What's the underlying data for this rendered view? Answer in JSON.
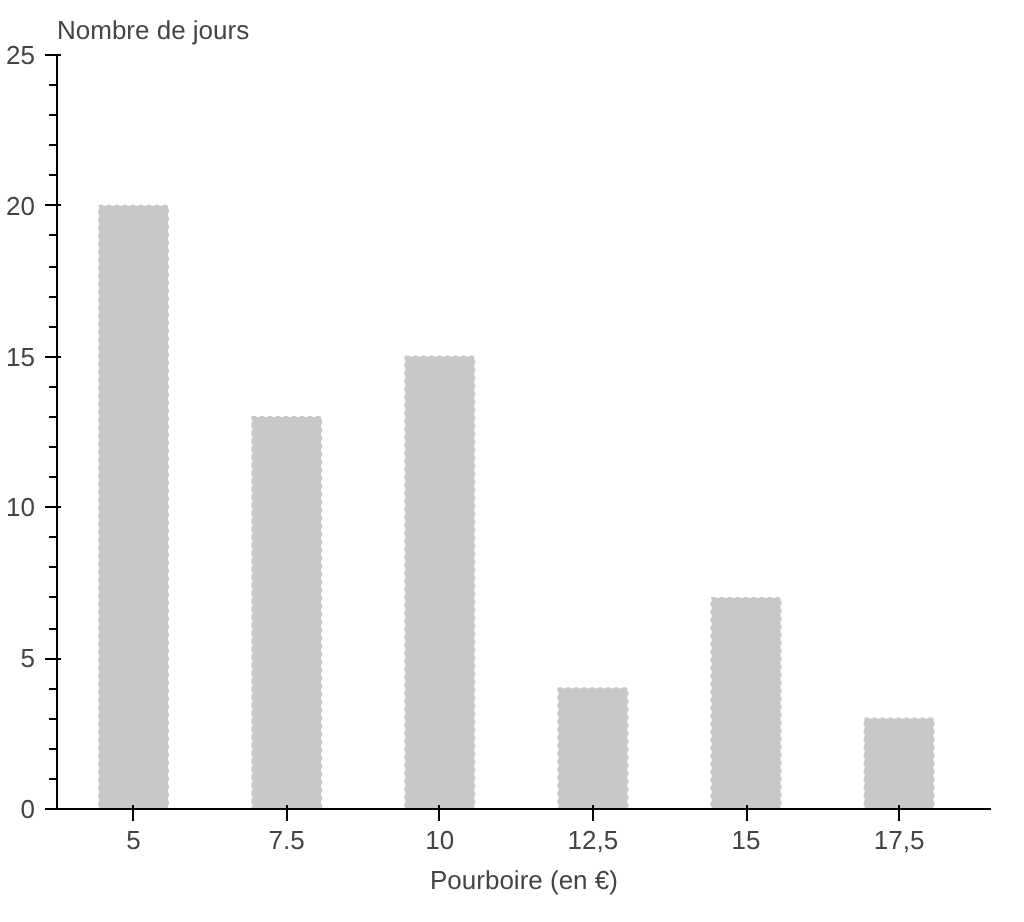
{
  "chart_data": {
    "type": "bar",
    "xlabel": "Pourboire (en €)",
    "ylabel": "Nombre de jours",
    "categories": [
      "5",
      "7.5",
      "10",
      "12,5",
      "15",
      "17,5"
    ],
    "values": [
      20,
      13,
      15,
      4,
      7,
      3
    ],
    "color": "#c8c8c8",
    "ylim": [
      0,
      25
    ],
    "yticks": [
      0,
      5,
      10,
      15,
      20,
      25
    ],
    "grid": false
  }
}
